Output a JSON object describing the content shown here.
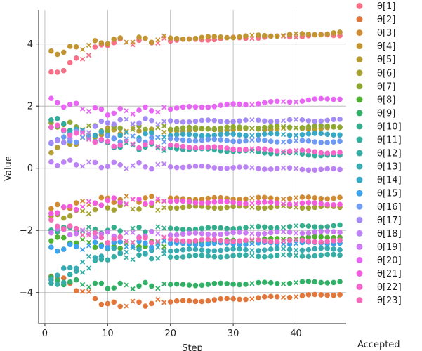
{
  "chart_data": {
    "type": "scatter",
    "xlabel": "Step",
    "ylabel": "Value",
    "xlim": [
      -1,
      48
    ],
    "ylim": [
      -5,
      5.1
    ],
    "xticks": [
      0,
      10,
      20,
      30,
      40
    ],
    "yticks": [
      -4,
      -2,
      0,
      2,
      4
    ],
    "grid": true,
    "legend_title": "Accepted",
    "legend_placement": "right",
    "x": [
      1,
      2,
      3,
      4,
      5,
      6,
      7,
      8,
      9,
      10,
      11,
      12,
      13,
      14,
      15,
      16,
      17,
      18,
      19,
      20,
      21,
      22,
      23,
      24,
      25,
      26,
      27,
      28,
      29,
      30,
      31,
      32,
      33,
      34,
      35,
      36,
      37,
      38,
      39,
      40,
      41,
      42,
      43,
      44,
      45,
      46,
      47
    ],
    "accepted": [
      true,
      true,
      true,
      true,
      true,
      false,
      false,
      true,
      true,
      true,
      true,
      true,
      false,
      false,
      true,
      true,
      true,
      false,
      false,
      true,
      true,
      true,
      true,
      true,
      true,
      true,
      true,
      true,
      true,
      true,
      true,
      true,
      false,
      true,
      true,
      true,
      true,
      false,
      true,
      false,
      true,
      true,
      true,
      true,
      true,
      true,
      true
    ],
    "series": [
      {
        "name": "θ[1]",
        "color": "#f77189",
        "start": 3.0,
        "mid": 4.05,
        "end": 4.3
      },
      {
        "name": "θ[2]",
        "color": "#e3763a",
        "start": -3.4,
        "mid": -4.4,
        "end": -4.05
      },
      {
        "name": "θ[3]",
        "color": "#d08c32",
        "start": -1.3,
        "mid": -1.0,
        "end": -0.95
      },
      {
        "name": "θ[4]",
        "color": "#c29532",
        "start": 3.7,
        "mid": 4.1,
        "end": 4.35
      },
      {
        "name": "θ[5]",
        "color": "#b49d32",
        "start": 0.6,
        "mid": 1.2,
        "end": 1.3
      },
      {
        "name": "θ[6]",
        "color": "#a5a232",
        "start": -1.6,
        "mid": -1.25,
        "end": -1.25
      },
      {
        "name": "θ[7]",
        "color": "#8ea832",
        "start": 1.45,
        "mid": 1.25,
        "end": 1.35
      },
      {
        "name": "θ[8]",
        "color": "#4fb032",
        "start": -2.25,
        "mid": -2.5,
        "end": -2.2
      },
      {
        "name": "θ[9]",
        "color": "#32b166",
        "start": -3.6,
        "mid": -3.8,
        "end": -3.65
      },
      {
        "name": "θ[10]",
        "color": "#34ae8c",
        "start": -1.95,
        "mid": -2.0,
        "end": -1.85
      },
      {
        "name": "θ[11]",
        "color": "#35ad9d",
        "start": 1.6,
        "mid": 0.75,
        "end": 0.4
      },
      {
        "name": "θ[12]",
        "color": "#36ada5",
        "start": -3.8,
        "mid": -2.85,
        "end": -2.8
      },
      {
        "name": "θ[13]",
        "color": "#37abb1",
        "start": -3.5,
        "mid": -2.65,
        "end": -2.6
      },
      {
        "name": "θ[14]",
        "color": "#38a9c5",
        "start": 1.3,
        "mid": 1.05,
        "end": 1.1
      },
      {
        "name": "θ[15]",
        "color": "#3ba3ec",
        "start": -2.6,
        "mid": -2.45,
        "end": -2.4
      },
      {
        "name": "θ[16]",
        "color": "#6e9af4",
        "start": 0.9,
        "mid": 0.95,
        "end": 0.85
      },
      {
        "name": "θ[17]",
        "color": "#a48cf4",
        "start": 0.75,
        "mid": 1.5,
        "end": 1.55
      },
      {
        "name": "θ[18]",
        "color": "#bb83f4",
        "start": 0.2,
        "mid": 0.1,
        "end": -0.05
      },
      {
        "name": "θ[19]",
        "color": "#cc7af4",
        "start": -2.0,
        "mid": -2.15,
        "end": -2.05
      },
      {
        "name": "θ[20]",
        "color": "#e866f4",
        "start": 2.15,
        "mid": 1.8,
        "end": 2.25
      },
      {
        "name": "θ[21]",
        "color": "#f45cde",
        "start": -1.4,
        "mid": -1.05,
        "end": -1.15
      },
      {
        "name": "θ[22]",
        "color": "#f565cc",
        "start": 1.35,
        "mid": 0.8,
        "end": 0.5
      },
      {
        "name": "θ[23]",
        "color": "#f66bb9",
        "start": -1.75,
        "mid": -2.3,
        "end": -2.35
      }
    ]
  }
}
